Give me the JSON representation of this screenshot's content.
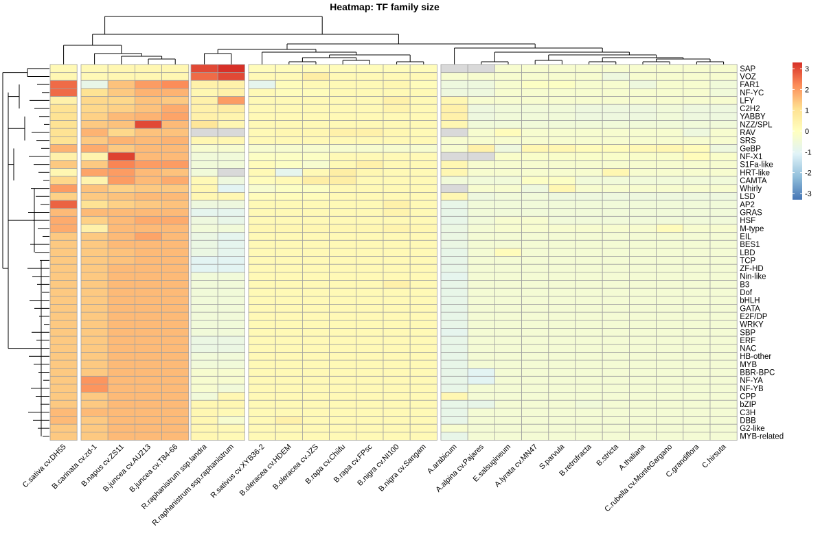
{
  "chart_data": {
    "type": "heatmap",
    "title": "Heatmap: TF family size",
    "colorbar": {
      "ticks": [
        3,
        2,
        1,
        0,
        -1,
        -2,
        -3
      ],
      "range": [
        -3.3,
        3.3
      ],
      "colors": [
        "#4575b4",
        "#91bfdb",
        "#e0f3f8",
        "#ffffbf",
        "#fee090",
        "#fc8d59",
        "#d73027"
      ],
      "position": "right"
    },
    "missing_color": "#d9d9d9",
    "rows": [
      "SAP",
      "VOZ",
      "FAR1",
      "NF-YC",
      "LFY",
      "C2H2",
      "YABBY",
      "NZZ/SPL",
      "RAV",
      "SRS",
      "GeBP",
      "NF-X1",
      "S1Fa-like",
      "HRT-like",
      "CAMTA",
      "Whirly",
      "LSD",
      "AP2",
      "GRAS",
      "HSF",
      "M-type",
      "EIL",
      "BES1",
      "LBD",
      "TCP",
      "ZF-HD",
      "Nin-like",
      "B3",
      "Dof",
      "bHLH",
      "GATA",
      "E2F/DP",
      "WRKY",
      "SBP",
      "ERF",
      "NAC",
      "HB-other",
      "MYB",
      "BBR-BPC",
      "NF-YA",
      "NF-YB",
      "CPP",
      "bZIP",
      "C3H",
      "DBB",
      "G2-like",
      "MYB-related"
    ],
    "columns": [
      "C.sativa cv.DH55",
      "B.carinata cv.zd-1",
      "B.napus cv.ZS11",
      "B.juncea cv.AU213",
      "B.juncea cv.T84-66",
      "R.raphanistrum ssp.landra",
      "R.raphanistrum ssp.raphanistrum",
      "R.sativus cv.XYB36-2",
      "B.oleracea cv.HDEM",
      "B.oleracea cv.JZS",
      "B.rapa cv.Chiifu",
      "B.rapa cv.FPsc",
      "B.nigra cv.NI100",
      "B.nigra cv.Sangam",
      "A.arabicum",
      "A.alpina cv.Pajares",
      "E.salsugineum",
      "A.lyrata cv.MN47",
      "S.parvula",
      "B.retrofracta",
      "B.stricta",
      "A.thaliana",
      "C.rubella cv.MonteGargano",
      "C.grandiflora",
      "C.hirsuta"
    ],
    "column_groups": [
      1,
      4,
      2,
      7,
      11
    ],
    "values": [
      [
        0.2,
        0.2,
        0.3,
        0.3,
        0.3,
        3.0,
        3.3,
        0.1,
        0.1,
        0.1,
        0.1,
        0.1,
        0.1,
        0.1,
        null,
        null,
        -0.3,
        -0.3,
        -0.3,
        -0.3,
        -0.3,
        -0.3,
        -0.3,
        -0.3,
        -0.3
      ],
      [
        0.3,
        0.2,
        0.3,
        0.3,
        0.3,
        2.6,
        3.0,
        0.2,
        0.2,
        0.6,
        0.2,
        0.2,
        0.2,
        0.2,
        -0.3,
        -0.3,
        -0.3,
        -0.3,
        -0.3,
        -0.3,
        -0.6,
        -0.3,
        -0.3,
        -0.3,
        -0.3
      ],
      [
        2.6,
        -0.8,
        1.5,
        2.0,
        2.2,
        0.5,
        0.5,
        -0.9,
        0.1,
        0.2,
        0.2,
        0.2,
        0.3,
        0.1,
        -0.6,
        -0.6,
        -0.3,
        -0.1,
        -0.1,
        -0.3,
        -0.3,
        -0.6,
        -0.3,
        -0.3,
        -0.5
      ],
      [
        2.6,
        1.0,
        1.4,
        1.7,
        1.7,
        0.3,
        0.5,
        0.2,
        0.1,
        0.1,
        0.2,
        0.2,
        0.2,
        0.2,
        -0.6,
        -0.6,
        -0.3,
        -0.3,
        -0.3,
        -0.3,
        -0.3,
        -0.3,
        -0.3,
        -0.3,
        -0.5
      ],
      [
        0.5,
        1.2,
        1.2,
        1.5,
        1.4,
        0.5,
        2.0,
        0.2,
        0.2,
        0.2,
        0.2,
        0.2,
        0.5,
        0.2,
        0.3,
        -0.3,
        -0.3,
        -0.3,
        -0.3,
        -0.3,
        -0.3,
        -0.3,
        -0.3,
        -0.3,
        -0.3
      ],
      [
        1.0,
        1.2,
        1.3,
        1.5,
        1.8,
        0.5,
        0.6,
        0.2,
        0.2,
        0.2,
        0.2,
        0.2,
        0.4,
        0.2,
        0.5,
        -0.6,
        -0.5,
        -0.5,
        -0.5,
        -0.6,
        -0.6,
        -0.6,
        -0.5,
        -0.6,
        -0.6
      ],
      [
        1.0,
        1.3,
        1.6,
        1.7,
        1.9,
        0.5,
        0.4,
        0.2,
        0.2,
        0.2,
        0.2,
        0.2,
        0.2,
        0.2,
        0.5,
        -0.6,
        -0.5,
        -0.5,
        -0.5,
        -0.6,
        -0.6,
        -0.6,
        -0.5,
        -0.6,
        -0.6
      ],
      [
        1.0,
        1.4,
        1.5,
        3.0,
        1.6,
        0.9,
        0.3,
        0.2,
        0.2,
        0.2,
        0.2,
        0.2,
        0.2,
        0.2,
        0.3,
        -0.5,
        -0.5,
        -0.5,
        -0.5,
        -0.5,
        -0.5,
        -0.5,
        -0.5,
        -0.5,
        -0.5
      ],
      [
        1.0,
        1.7,
        1.2,
        1.5,
        1.5,
        null,
        null,
        0.2,
        0.3,
        0.3,
        0.5,
        0.5,
        0.3,
        0.2,
        null,
        -0.3,
        0.1,
        -0.3,
        -0.3,
        -0.3,
        -0.3,
        -0.3,
        -0.3,
        -0.6,
        -0.3
      ],
      [
        1.0,
        1.4,
        1.7,
        1.6,
        1.7,
        0.3,
        0.3,
        0.2,
        0.2,
        0.2,
        0.2,
        0.2,
        0.2,
        0.2,
        -0.3,
        -0.3,
        -0.3,
        -0.3,
        -0.3,
        -0.3,
        -0.3,
        -0.3,
        -0.3,
        -0.3,
        -0.3
      ],
      [
        1.7,
        1.8,
        1.4,
        1.6,
        1.6,
        -0.3,
        -0.3,
        -0.3,
        -0.3,
        -0.3,
        -0.3,
        -0.3,
        -0.3,
        -0.3,
        -0.3,
        0.5,
        -0.6,
        0.3,
        0.3,
        0.1,
        0.1,
        0.2,
        0.3,
        0.1,
        -0.6
      ],
      [
        0.5,
        0.4,
        3.1,
        1.6,
        1.6,
        -0.5,
        -0.5,
        -0.1,
        -0.1,
        -0.1,
        0.2,
        0.2,
        0.2,
        0.2,
        null,
        null,
        -0.2,
        -0.2,
        -0.2,
        -0.2,
        -0.2,
        -0.2,
        -0.2,
        0.1,
        -0.2
      ],
      [
        1.4,
        1.4,
        2.3,
        2.0,
        2.0,
        -0.5,
        -0.5,
        0.1,
        -0.1,
        -0.3,
        0.2,
        0.5,
        0.2,
        0.2,
        0.3,
        -0.3,
        -0.3,
        -0.3,
        -0.3,
        -0.3,
        -0.3,
        -0.3,
        -0.3,
        -0.3,
        -0.3
      ],
      [
        0.3,
        1.9,
        2.0,
        1.6,
        1.5,
        -0.5,
        null,
        0.2,
        -0.9,
        0.2,
        0.6,
        0.3,
        0.2,
        0.2,
        0.3,
        -0.3,
        -0.3,
        -0.3,
        -0.3,
        -0.3,
        0.3,
        -0.3,
        -0.3,
        -0.3,
        -0.3
      ],
      [
        1.2,
        0.4,
        2.0,
        1.6,
        1.8,
        0.2,
        -0.6,
        0.1,
        0.2,
        0.6,
        0.6,
        0.2,
        0.2,
        0.2,
        -0.5,
        -0.5,
        -0.5,
        -0.1,
        -0.1,
        -0.5,
        -0.5,
        -0.5,
        -0.5,
        -0.5,
        -0.5
      ],
      [
        2.0,
        1.5,
        1.3,
        1.4,
        1.4,
        0.3,
        -1.0,
        -0.3,
        -0.1,
        -0.1,
        0.2,
        0.2,
        0.2,
        0.2,
        null,
        -0.3,
        -0.3,
        -0.6,
        0.3,
        -0.3,
        -0.3,
        -0.3,
        -0.3,
        -0.3,
        -0.3
      ],
      [
        1.3,
        1.4,
        1.5,
        1.6,
        1.6,
        0.3,
        0.3,
        0.1,
        0.1,
        0.1,
        0.2,
        0.2,
        0.2,
        0.2,
        0.3,
        -0.6,
        -0.5,
        -0.5,
        -0.6,
        -0.6,
        -0.6,
        -0.6,
        -0.6,
        -0.6,
        -0.6
      ],
      [
        2.7,
        1.0,
        1.3,
        1.4,
        1.5,
        -0.6,
        -0.6,
        0.2,
        0.2,
        0.2,
        0.2,
        0.2,
        0.5,
        0.2,
        -0.8,
        -0.5,
        -0.5,
        -0.5,
        -0.5,
        -0.5,
        -0.5,
        -0.5,
        -0.5,
        -0.5,
        -0.5
      ],
      [
        1.6,
        1.6,
        1.6,
        1.6,
        1.6,
        -0.9,
        -0.9,
        0.2,
        0.2,
        0.2,
        0.2,
        0.2,
        0.4,
        0.2,
        -0.8,
        -0.5,
        -0.5,
        -0.5,
        -0.5,
        -0.5,
        -0.5,
        -0.5,
        -0.5,
        -0.5,
        -0.5
      ],
      [
        1.8,
        1.3,
        1.6,
        1.8,
        1.8,
        -0.6,
        -0.8,
        0.2,
        0.2,
        0.2,
        0.2,
        0.2,
        0.2,
        0.2,
        -0.8,
        -0.5,
        -0.3,
        -0.3,
        -0.5,
        -0.5,
        -0.5,
        -0.5,
        -0.5,
        -0.5,
        -0.5
      ],
      [
        1.8,
        0.5,
        1.6,
        1.6,
        1.6,
        -0.5,
        -0.5,
        0.3,
        0.3,
        0.3,
        0.3,
        0.3,
        0.4,
        0.3,
        -0.7,
        -0.4,
        -0.3,
        -0.3,
        -0.3,
        -0.3,
        -0.3,
        -0.3,
        0.1,
        -0.3,
        -0.3
      ],
      [
        1.4,
        1.4,
        1.6,
        1.9,
        1.6,
        -0.7,
        -0.9,
        0.2,
        0.2,
        0.2,
        0.2,
        0.2,
        0.2,
        0.2,
        -0.7,
        -0.4,
        -0.4,
        -0.4,
        -0.4,
        -0.4,
        -0.4,
        -0.4,
        -0.4,
        -0.4,
        -0.4
      ],
      [
        1.4,
        1.4,
        1.6,
        1.6,
        1.6,
        -0.7,
        -0.9,
        0.2,
        0.2,
        0.2,
        0.2,
        0.2,
        0.2,
        0.2,
        -0.7,
        -0.4,
        -0.4,
        -0.4,
        -0.4,
        -0.4,
        -0.4,
        -0.4,
        -0.4,
        -0.4,
        -0.4
      ],
      [
        1.4,
        1.4,
        1.5,
        1.6,
        1.6,
        -0.7,
        -0.9,
        0.2,
        0.2,
        0.2,
        0.2,
        0.2,
        0.2,
        0.2,
        -0.8,
        -0.4,
        0.1,
        -0.4,
        -0.4,
        -0.4,
        -0.4,
        -0.4,
        -0.4,
        -0.4,
        -0.4
      ],
      [
        1.4,
        1.4,
        1.5,
        1.6,
        1.6,
        -1.0,
        -1.0,
        0.2,
        0.2,
        0.2,
        0.2,
        0.2,
        0.2,
        0.2,
        -0.8,
        -0.4,
        -0.4,
        -0.4,
        -0.4,
        -0.4,
        -0.4,
        -0.4,
        -0.4,
        -0.4,
        -0.4
      ],
      [
        1.4,
        1.4,
        1.6,
        1.6,
        1.6,
        -1.0,
        -1.0,
        0.2,
        0.2,
        0.2,
        0.2,
        0.2,
        0.2,
        0.2,
        -0.8,
        -0.4,
        -0.4,
        -0.4,
        -0.4,
        -0.4,
        -0.4,
        -0.4,
        -0.4,
        -0.4,
        -0.4
      ],
      [
        1.4,
        1.4,
        1.6,
        1.6,
        1.6,
        -0.5,
        -0.5,
        0.2,
        0.2,
        0.2,
        0.2,
        0.2,
        0.2,
        0.2,
        -0.9,
        -0.4,
        -0.4,
        -0.4,
        -0.4,
        -0.4,
        -0.4,
        -0.4,
        -0.4,
        -0.4,
        -0.4
      ],
      [
        1.4,
        1.4,
        1.6,
        1.6,
        1.6,
        -0.5,
        -0.5,
        0.2,
        0.2,
        0.2,
        0.2,
        0.2,
        0.5,
        0.2,
        -0.8,
        -0.4,
        -0.4,
        -0.4,
        -0.4,
        -0.4,
        -0.4,
        -0.4,
        -0.4,
        -0.4,
        -0.4
      ],
      [
        1.4,
        1.4,
        1.6,
        1.6,
        1.6,
        -0.5,
        -0.5,
        0.2,
        0.2,
        0.2,
        0.2,
        0.2,
        0.2,
        0.2,
        -0.8,
        -0.4,
        -0.4,
        -0.4,
        -0.4,
        -0.4,
        -0.4,
        -0.4,
        -0.4,
        -0.4,
        -0.4
      ],
      [
        1.4,
        1.4,
        1.6,
        1.6,
        1.6,
        -0.5,
        -0.5,
        0.2,
        0.2,
        0.2,
        0.2,
        0.2,
        0.2,
        0.2,
        -0.8,
        -0.4,
        -0.4,
        -0.4,
        -0.4,
        -0.4,
        -0.4,
        -0.4,
        -0.4,
        -0.4,
        -0.4
      ],
      [
        1.4,
        1.4,
        1.6,
        1.6,
        1.6,
        -0.5,
        -0.5,
        0.2,
        0.2,
        0.2,
        0.2,
        0.2,
        0.2,
        0.2,
        -0.8,
        -0.4,
        -0.4,
        -0.4,
        -0.4,
        -0.4,
        -0.4,
        -0.4,
        -0.4,
        -0.4,
        -0.4
      ],
      [
        1.4,
        1.4,
        1.6,
        1.6,
        1.6,
        -0.5,
        -0.5,
        0.2,
        0.2,
        0.2,
        0.2,
        0.2,
        0.2,
        0.2,
        -0.8,
        -0.4,
        -0.4,
        -0.4,
        -0.4,
        -0.4,
        -0.4,
        -0.4,
        -0.4,
        -0.4,
        -0.4
      ],
      [
        1.4,
        1.4,
        1.6,
        1.6,
        1.6,
        -0.5,
        -0.5,
        0.2,
        0.2,
        0.2,
        0.2,
        0.2,
        0.2,
        0.2,
        -0.8,
        -0.4,
        -0.4,
        -0.4,
        -0.4,
        -0.4,
        -0.4,
        -0.4,
        -0.4,
        -0.4,
        -0.4
      ],
      [
        1.4,
        1.4,
        1.6,
        1.6,
        1.6,
        -0.5,
        -0.5,
        0.2,
        0.2,
        0.2,
        0.2,
        0.2,
        0.2,
        0.2,
        -0.9,
        -0.4,
        -0.4,
        -0.4,
        -0.4,
        -0.4,
        -0.4,
        -0.4,
        -0.4,
        -0.4,
        -0.4
      ],
      [
        1.4,
        1.4,
        1.6,
        1.6,
        1.6,
        -0.7,
        -0.7,
        0.2,
        0.2,
        0.2,
        0.2,
        0.2,
        0.2,
        0.2,
        -0.8,
        -0.4,
        -0.4,
        -0.4,
        -0.4,
        -0.4,
        -0.4,
        -0.4,
        -0.4,
        -0.4,
        -0.4
      ],
      [
        1.4,
        1.4,
        1.6,
        1.6,
        1.6,
        -0.7,
        -0.7,
        0.2,
        0.2,
        0.2,
        0.2,
        0.2,
        0.2,
        0.2,
        -0.8,
        -0.4,
        -0.4,
        -0.4,
        -0.4,
        -0.4,
        -0.4,
        -0.4,
        -0.4,
        -0.4,
        -0.4
      ],
      [
        1.4,
        1.4,
        1.6,
        1.6,
        1.6,
        -0.5,
        -0.5,
        0.2,
        0.2,
        0.2,
        0.2,
        0.2,
        0.2,
        0.2,
        -0.8,
        -0.4,
        -0.4,
        -0.4,
        -0.4,
        -0.4,
        -0.4,
        -0.4,
        -0.4,
        -0.4,
        -0.4
      ],
      [
        1.4,
        1.4,
        1.6,
        1.6,
        1.6,
        -0.5,
        -0.5,
        0.2,
        0.2,
        0.2,
        0.2,
        0.2,
        0.2,
        0.2,
        -0.8,
        -0.4,
        -0.4,
        -0.4,
        -0.4,
        -0.4,
        -0.4,
        -0.4,
        -0.4,
        -0.4,
        -0.4
      ],
      [
        1.4,
        1.4,
        1.6,
        1.6,
        1.6,
        -0.3,
        -0.3,
        0.2,
        0.2,
        0.2,
        0.2,
        0.2,
        0.2,
        0.2,
        -0.8,
        -1.0,
        -0.4,
        -0.4,
        -0.4,
        -0.4,
        -0.4,
        -0.4,
        -0.4,
        -0.4,
        -0.4
      ],
      [
        1.4,
        2.1,
        1.6,
        1.6,
        1.6,
        -0.3,
        -0.3,
        0.2,
        0.2,
        0.2,
        0.2,
        0.2,
        0.2,
        0.2,
        -0.8,
        -1.0,
        -0.4,
        -0.4,
        -0.4,
        -0.4,
        -0.4,
        -0.4,
        -0.4,
        -0.4,
        -0.4
      ],
      [
        1.4,
        2.1,
        1.6,
        1.6,
        1.6,
        -0.3,
        -0.5,
        0.2,
        0.2,
        0.2,
        0.2,
        0.2,
        0.2,
        0.2,
        -0.8,
        -0.4,
        -0.4,
        -0.4,
        -0.4,
        -0.4,
        -0.4,
        -0.4,
        -0.4,
        -0.4,
        -0.4
      ],
      [
        1.4,
        1.4,
        1.6,
        1.6,
        1.6,
        -0.5,
        0.3,
        0.2,
        0.2,
        0.2,
        0.2,
        0.2,
        0.2,
        0.2,
        0.3,
        -0.4,
        -0.4,
        -0.4,
        -0.4,
        -0.4,
        -0.4,
        -0.4,
        -0.4,
        -0.4,
        -0.4
      ],
      [
        1.4,
        1.4,
        1.6,
        1.6,
        1.6,
        0.3,
        0.3,
        0.2,
        0.2,
        0.2,
        0.2,
        0.2,
        0.2,
        0.2,
        -0.8,
        -0.8,
        -0.4,
        -0.4,
        -0.4,
        -0.5,
        -0.4,
        -0.4,
        -0.4,
        -0.4,
        -0.4
      ],
      [
        1.6,
        1.6,
        1.6,
        1.6,
        1.6,
        0.3,
        0.2,
        0.2,
        0.2,
        0.2,
        0.2,
        0.2,
        0.2,
        0.2,
        -0.8,
        -0.4,
        -0.4,
        -0.4,
        -0.4,
        -0.4,
        -0.4,
        -0.4,
        -0.4,
        -0.4,
        -0.4
      ],
      [
        1.6,
        1.4,
        1.6,
        1.6,
        1.6,
        0.3,
        -0.3,
        0.2,
        0.5,
        0.2,
        0.2,
        0.2,
        0.2,
        0.2,
        -0.8,
        -0.4,
        -0.4,
        -0.4,
        -0.4,
        -0.4,
        -0.4,
        -0.4,
        -0.4,
        -0.4,
        -0.4
      ],
      [
        1.4,
        1.4,
        1.6,
        1.6,
        1.6,
        0.3,
        0.2,
        0.2,
        0.2,
        0.2,
        0.2,
        0.2,
        0.2,
        0.2,
        -0.3,
        -0.4,
        -0.4,
        -0.4,
        -0.4,
        -0.4,
        -0.4,
        -0.4,
        -0.4,
        -0.4,
        -0.4
      ],
      [
        1.4,
        1.4,
        1.6,
        1.6,
        1.6,
        0.3,
        0.2,
        0.2,
        0.2,
        0.2,
        0.2,
        0.2,
        0.2,
        0.2,
        -0.8,
        -0.4,
        -0.4,
        -0.4,
        -0.4,
        -0.4,
        -0.4,
        -0.4,
        -0.4,
        -0.4,
        -0.4
      ]
    ]
  }
}
